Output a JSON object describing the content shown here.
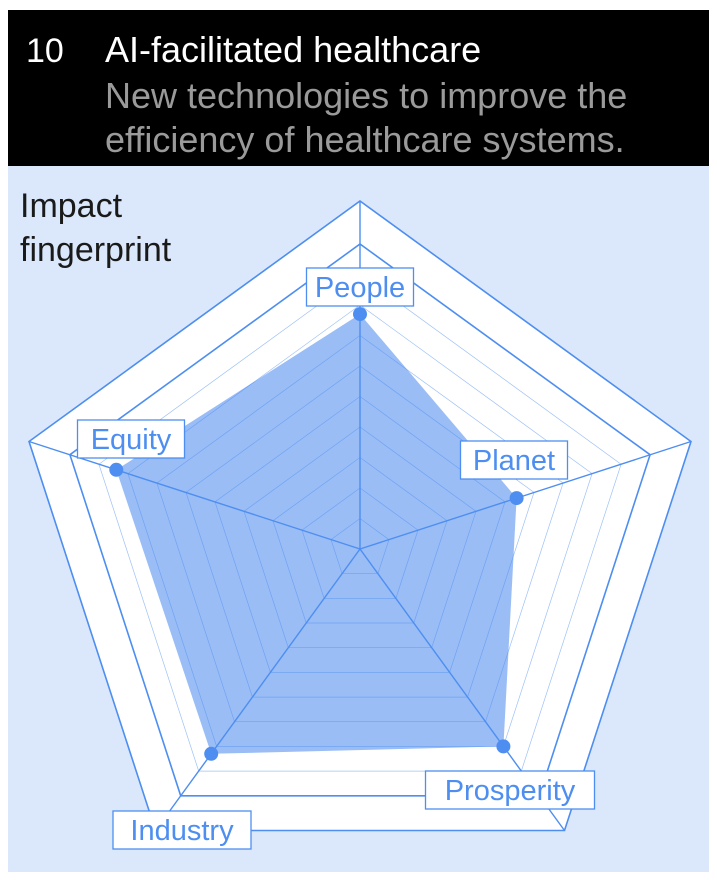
{
  "header": {
    "number": "10",
    "title": "AI-facilitated healthcare",
    "subtitle": "New technologies to improve the efficiency of healthcare systems."
  },
  "panel": {
    "label": "Impact fingerprint"
  },
  "colors": {
    "header_bg": "#000000",
    "panel_bg": "#dbe8fb",
    "accent": "#4d8ef0",
    "fill": "#8fb6f5",
    "muted_text": "#9a9a9a"
  },
  "chart_data": {
    "type": "radar",
    "title": "",
    "axes": [
      "People",
      "Planet",
      "Prosperity",
      "Industry",
      "Equity"
    ],
    "values": [
      0.77,
      0.54,
      0.8,
      0.83,
      0.84
    ],
    "range": [
      0,
      1
    ],
    "rings": 10,
    "grid": true
  }
}
